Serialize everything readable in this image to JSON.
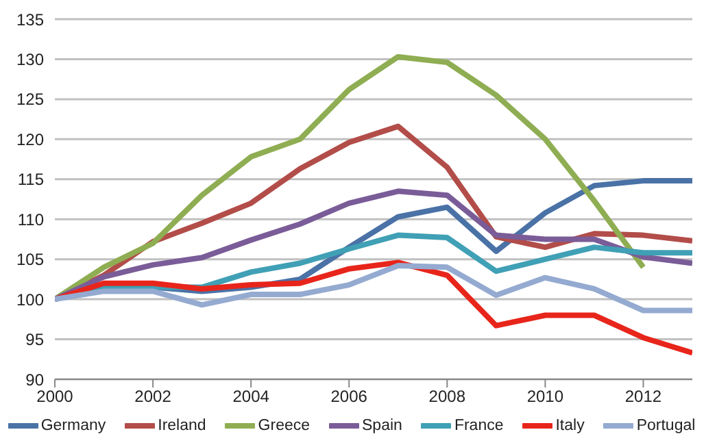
{
  "chart_data": {
    "type": "line",
    "x": [
      2000,
      2001,
      2002,
      2003,
      2004,
      2005,
      2006,
      2007,
      2008,
      2009,
      2010,
      2011,
      2012,
      2013
    ],
    "xlim": [
      2000,
      2013
    ],
    "xticks": [
      2000,
      2002,
      2004,
      2006,
      2008,
      2010,
      2012
    ],
    "ylim": [
      90,
      135
    ],
    "yticks": [
      90,
      95,
      100,
      105,
      110,
      115,
      120,
      125,
      130,
      135
    ],
    "grid": "y",
    "legend": "bottom",
    "marker": "none",
    "line_style": "solid",
    "series": [
      {
        "name": "Germany",
        "color": "#4a72a6",
        "values": [
          100,
          101.5,
          101.5,
          101,
          101.5,
          102.5,
          106.5,
          110.3,
          111.5,
          106,
          110.8,
          114.2,
          114.8,
          114.8
        ]
      },
      {
        "name": "Ireland",
        "color": "#b24d49",
        "values": [
          100,
          103,
          107.2,
          109.5,
          112,
          116.3,
          119.6,
          121.6,
          116.5,
          107.8,
          106.5,
          108.2,
          108,
          107.3
        ]
      },
      {
        "name": "Greece",
        "color": "#8fad52",
        "values": [
          100,
          104,
          107,
          113,
          117.8,
          120,
          126.2,
          130.3,
          129.6,
          125.5,
          120,
          112.3,
          104,
          null
        ]
      },
      {
        "name": "Spain",
        "color": "#7a5c98",
        "values": [
          100,
          102.8,
          104.3,
          105.2,
          107.4,
          109.4,
          112,
          113.5,
          113,
          108,
          107.5,
          107.5,
          105.3,
          104.5
        ]
      },
      {
        "name": "France",
        "color": "#40a0b5",
        "values": [
          100,
          101.5,
          101.5,
          101.5,
          103.4,
          104.5,
          106.3,
          108,
          107.7,
          103.5,
          105,
          106.5,
          105.8,
          105.8
        ]
      },
      {
        "name": "Italy",
        "color": "#e8251b",
        "values": [
          100,
          102,
          102,
          101.3,
          101.8,
          102,
          103.8,
          104.6,
          103,
          96.7,
          98,
          98,
          95.2,
          93.3
        ]
      },
      {
        "name": "Portugal",
        "color": "#94aad0",
        "values": [
          100,
          101,
          101,
          99.3,
          100.6,
          100.6,
          101.8,
          104.2,
          104,
          100.5,
          102.7,
          101.3,
          98.6,
          98.6
        ]
      }
    ]
  }
}
